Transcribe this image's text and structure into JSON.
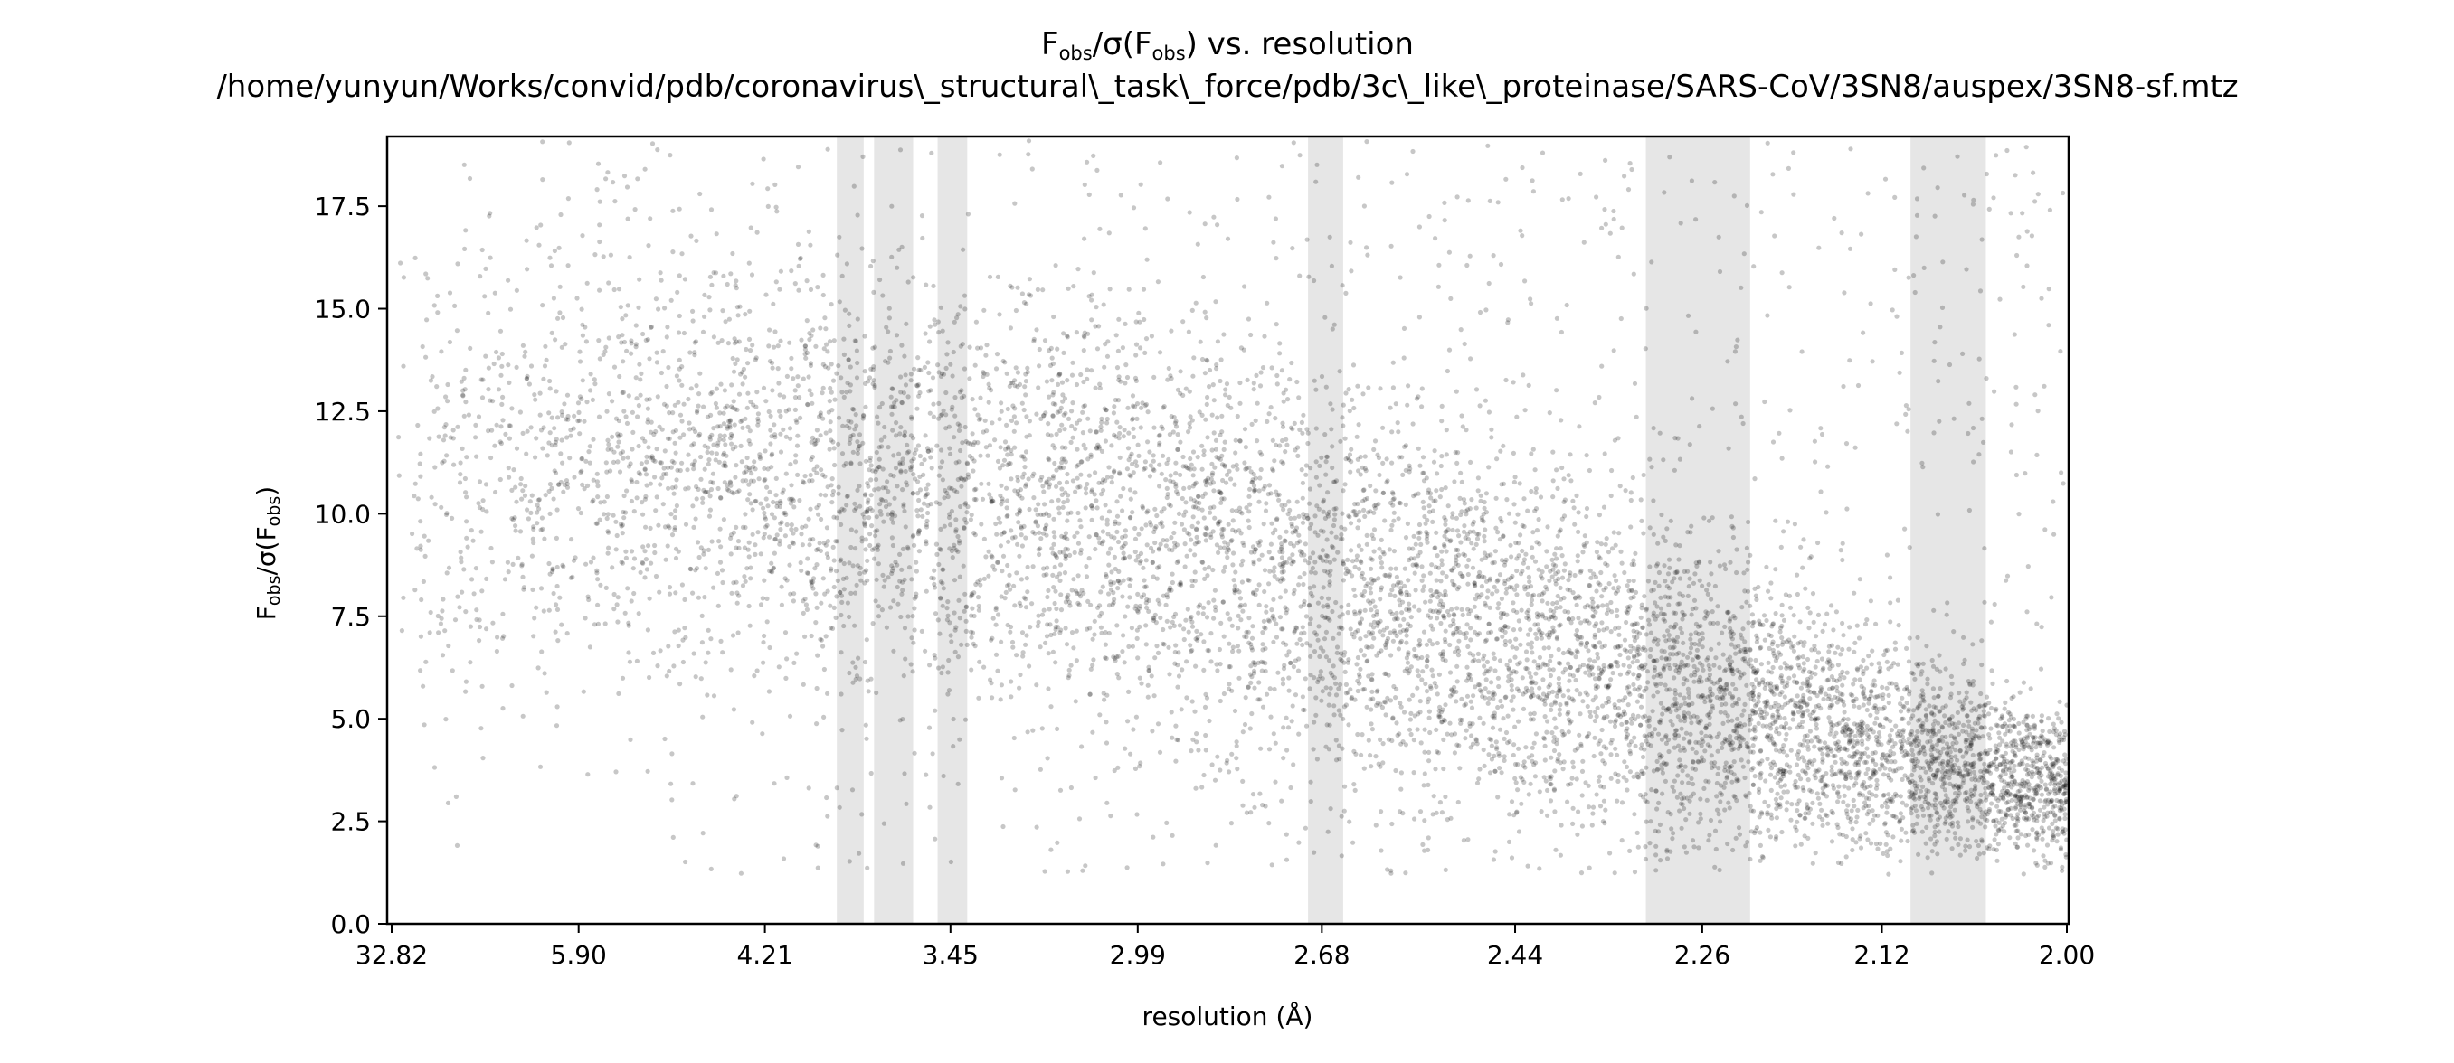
{
  "chart_data": {
    "type": "scatter",
    "title": {
      "line1_main": "F",
      "line1_sub": "obs",
      "line1_mid": "/σ(F",
      "line1_sub2": "obs",
      "line1_end": ") vs. resolution",
      "line2": "/home/yunyun/Works/convid/pdb/coronavirus\\_structural\\_task\\_force/pdb/3c\\_like\\_proteinase/SARS-CoV/3SN8/auspex/3SN8-sf.mtz"
    },
    "xlabel": "resolution (Å)",
    "ylabel": {
      "main": "F",
      "sub": "obs",
      "mid": "/σ(F",
      "sub2": "obs",
      "end": ")"
    },
    "x_scale": "inverse-square resolution (1/d²), labelled in Å",
    "x_ticks": [
      "32.82",
      "5.90",
      "4.21",
      "3.45",
      "2.99",
      "2.68",
      "2.44",
      "2.26",
      "2.12",
      "2.00"
    ],
    "ylim": [
      0,
      19.2
    ],
    "y_ticks": [
      "0.0",
      "2.5",
      "5.0",
      "7.5",
      "10.0",
      "12.5",
      "15.0",
      "17.5"
    ],
    "grid": false,
    "legend": "none",
    "point_color": "#000000",
    "point_alpha": 0.22,
    "shaded_band_color": "#e6e6e6",
    "shaded_resolution_bands": [
      {
        "from_A": 3.86,
        "to_A": 3.75
      },
      {
        "from_A": 3.71,
        "to_A": 3.57
      },
      {
        "from_A": 3.49,
        "to_A": 3.4
      },
      {
        "from_A": 2.7,
        "to_A": 2.65
      },
      {
        "from_A": 2.31,
        "to_A": 2.22
      },
      {
        "from_A": 2.1,
        "to_A": 2.05
      }
    ],
    "point_density_profile": [
      {
        "resolution_A": 32.82,
        "main_center": 10.0,
        "spread": 3.5
      },
      {
        "resolution_A": 5.9,
        "main_center": 11.5,
        "spread": 3.0
      },
      {
        "resolution_A": 4.21,
        "main_center": 11.0,
        "spread": 3.0
      },
      {
        "resolution_A": 3.45,
        "main_center": 10.5,
        "spread": 3.0
      },
      {
        "resolution_A": 2.99,
        "main_center": 10.0,
        "spread": 3.0
      },
      {
        "resolution_A": 2.68,
        "main_center": 8.5,
        "spread": 2.8
      },
      {
        "resolution_A": 2.44,
        "main_center": 7.0,
        "spread": 2.5
      },
      {
        "resolution_A": 2.26,
        "main_center": 5.5,
        "spread": 2.2
      },
      {
        "resolution_A": 2.12,
        "main_center": 4.2,
        "spread": 1.6
      },
      {
        "resolution_A": 2.0,
        "main_center": 3.3,
        "spread": 1.0
      }
    ]
  }
}
